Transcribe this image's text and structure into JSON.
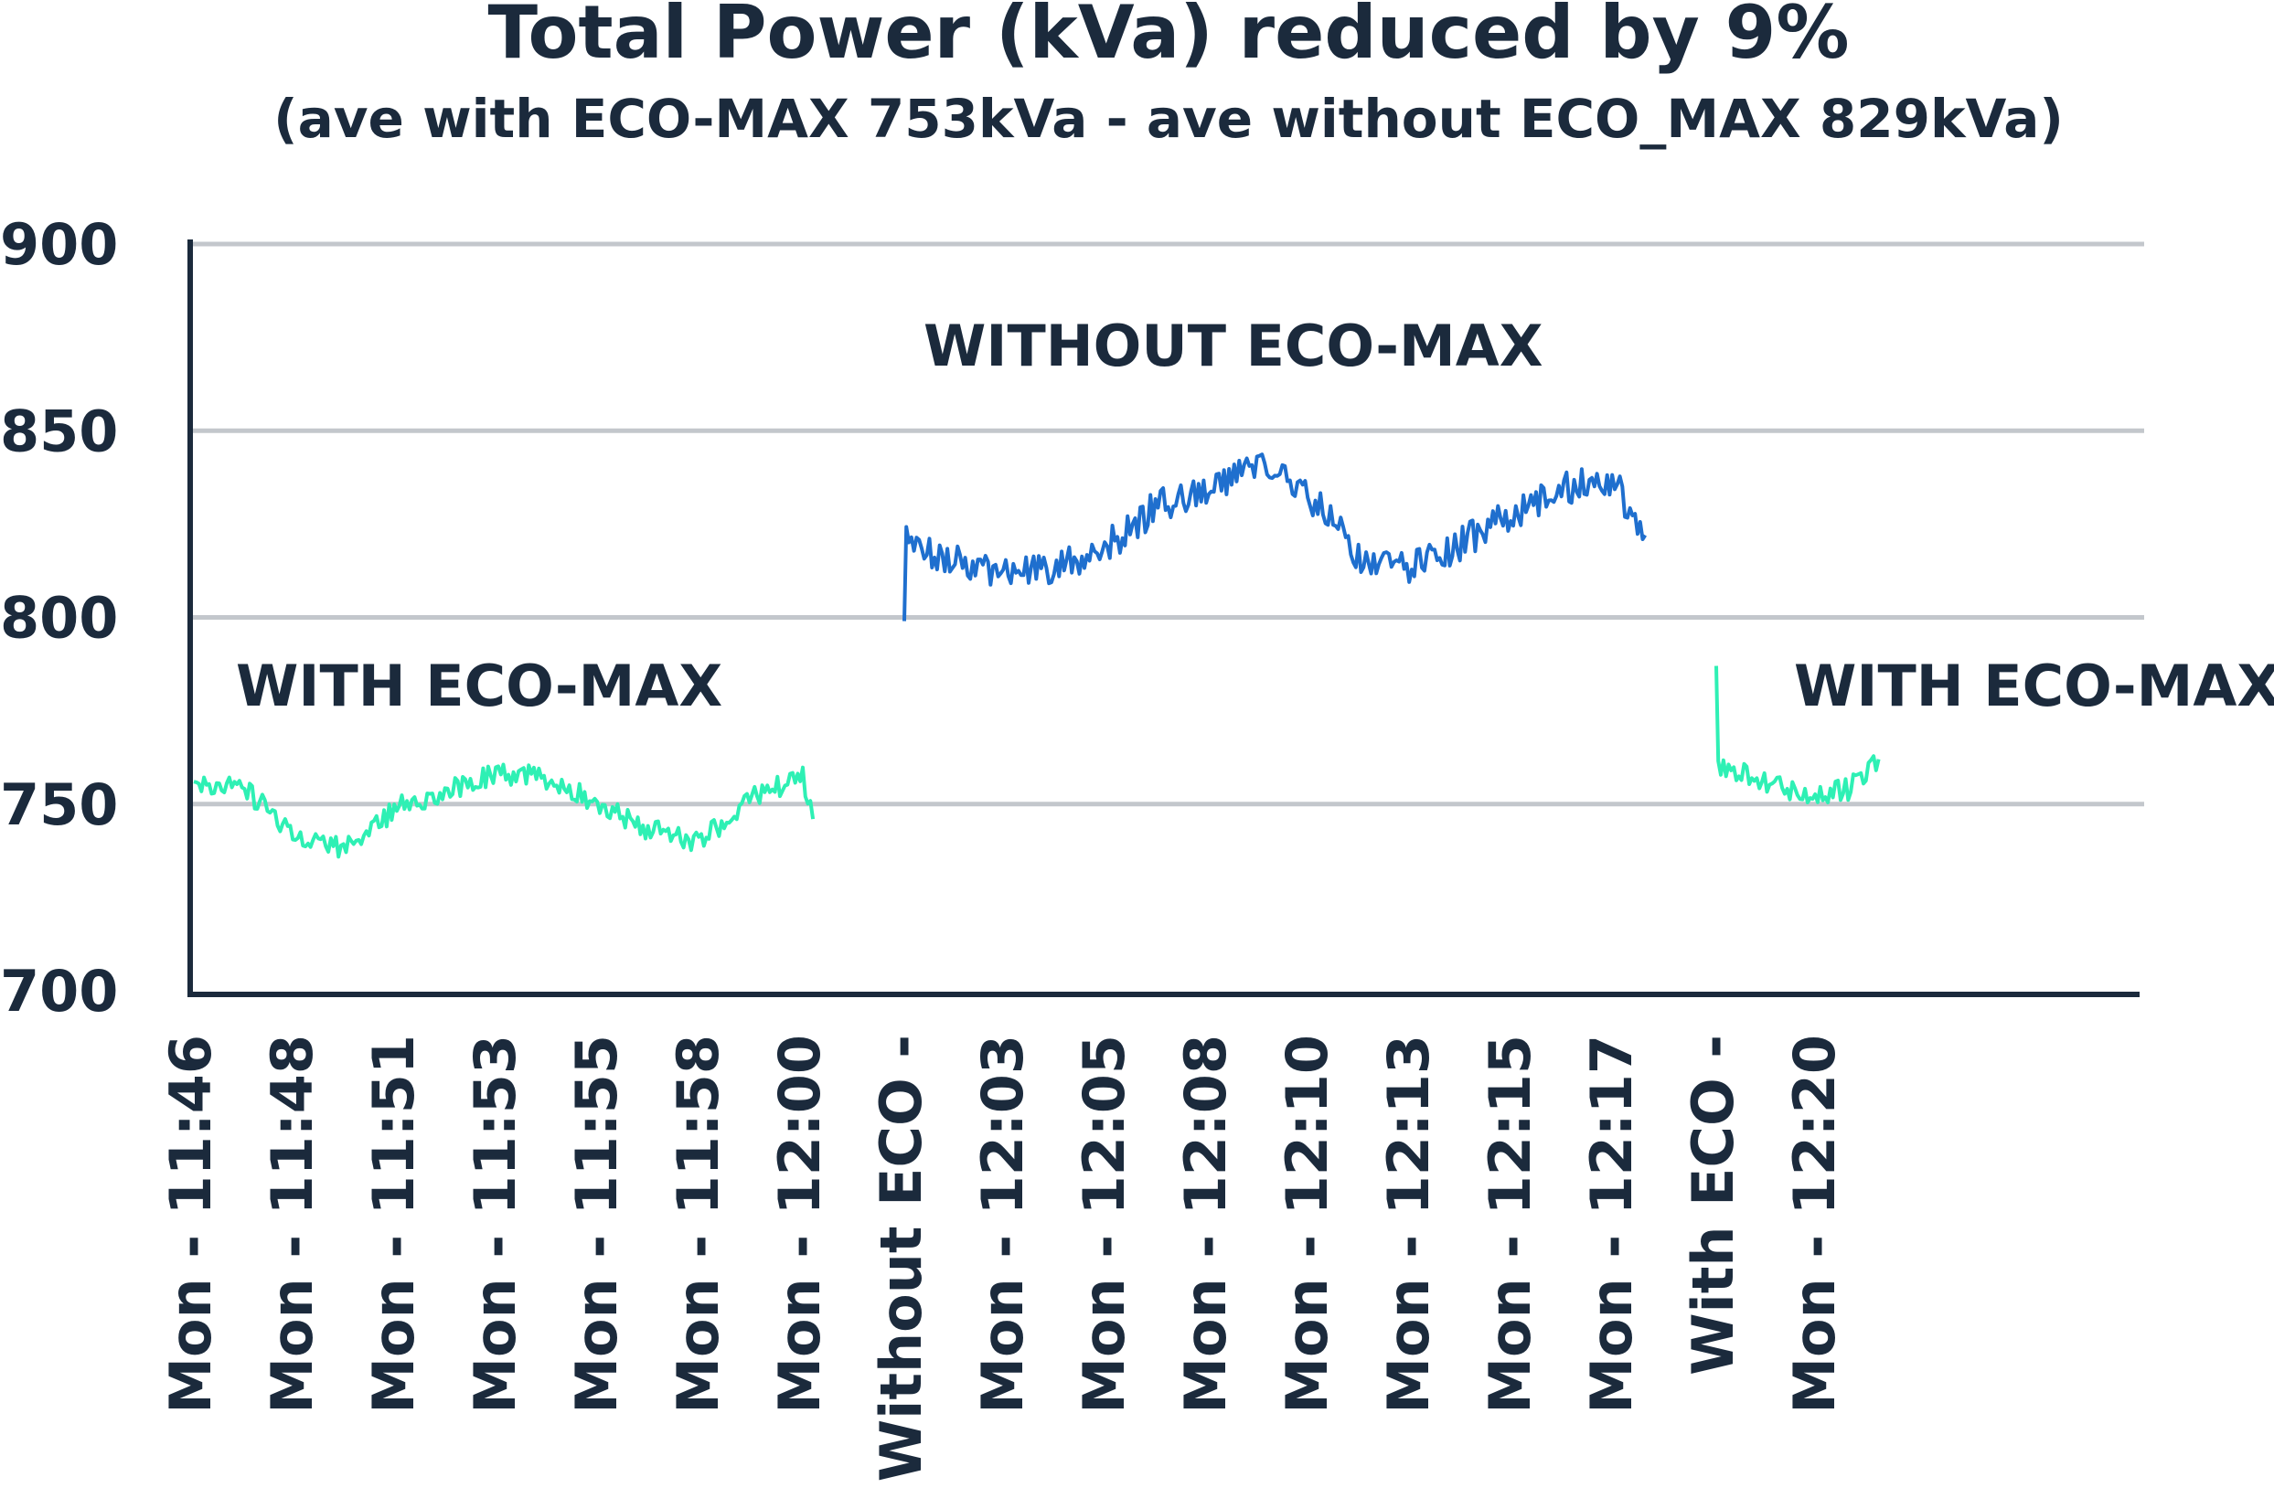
{
  "chart_data": {
    "type": "line",
    "title": "Total Power (kVa) reduced by 9%",
    "subtitle": "(ave with ECO-MAX 753kVa - ave without ECO_MAX 829kVa)",
    "xlabel": "",
    "ylabel": "",
    "ylim": [
      700,
      900
    ],
    "yticks": [
      700,
      750,
      800,
      850,
      900
    ],
    "grid": true,
    "x_tick_labels": [
      "Mon - 11:46",
      "Mon - 11:48",
      "Mon - 11:51",
      "Mon - 11:53",
      "Mon - 11:55",
      "Mon - 11:58",
      "Mon - 12:00",
      "Without ECO -",
      "Mon - 12:03",
      "Mon - 12:05",
      "Mon - 12:08",
      "Mon - 12:10",
      "Mon - 12:13",
      "Mon - 12:15",
      "Mon - 12:17",
      "With ECO -",
      "Mon - 12:20"
    ],
    "annotations": [
      "WITH ECO-MAX",
      "WITHOUT ECO-MAX",
      "WITH ECO-MAX"
    ],
    "series": [
      {
        "color": "#2ef0b4",
        "x": [
          0,
          0.5,
          1,
          1.5,
          2,
          2.5,
          3,
          3.5,
          4,
          4.5,
          5,
          5.5,
          6,
          6.1
        ],
        "values": [
          756,
          754,
          742,
          738,
          749,
          754,
          758,
          757,
          750,
          743,
          740,
          752,
          757,
          746
        ]
      },
      {
        "color": "#1f6fce",
        "x": [
          7,
          7.02,
          7.5,
          8,
          8.5,
          9,
          9.5,
          10,
          10.5,
          11,
          11.5,
          12,
          12.5,
          13,
          13.5,
          14,
          14.3
        ],
        "values": [
          799,
          820,
          815,
          812,
          813,
          819,
          830,
          833,
          842,
          832,
          816,
          813,
          820,
          828,
          835,
          836,
          822
        ]
      },
      {
        "color": "#2ef0b4",
        "x": [
          15,
          15.02,
          15.3,
          15.7,
          16,
          16.3,
          16.6
        ],
        "values": [
          787,
          760,
          758,
          754,
          752,
          754,
          762
        ]
      }
    ]
  }
}
